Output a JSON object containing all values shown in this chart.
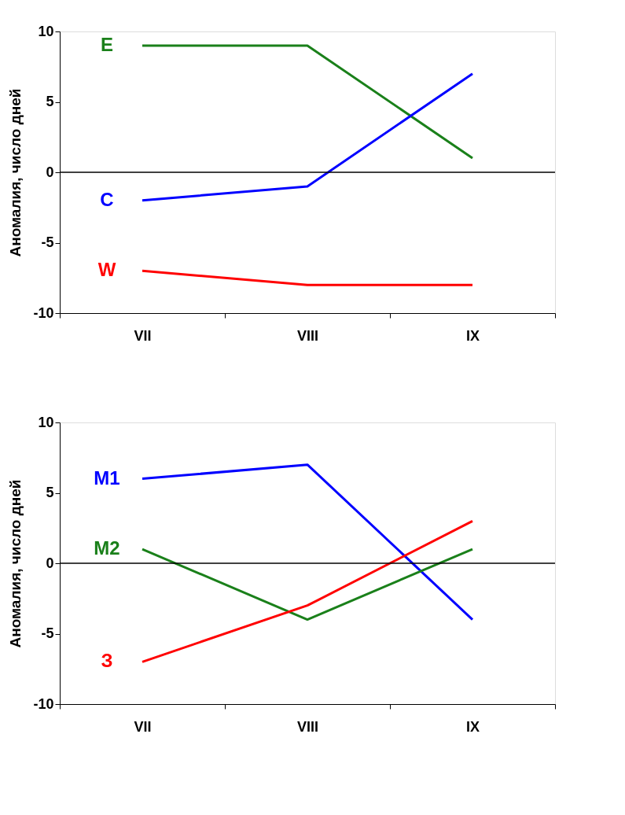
{
  "chart_data": [
    {
      "type": "line",
      "ylabel": "Аномалия, число дней",
      "categories": [
        "VII",
        "VIII",
        "IX"
      ],
      "ylim": [
        -10,
        10
      ],
      "yticks": [
        -10,
        -5,
        0,
        5,
        10
      ],
      "grid": false,
      "marker": "none",
      "line_style": "solid",
      "series": [
        {
          "name": "E",
          "color": "#1a801a",
          "values": [
            9,
            9,
            1
          ]
        },
        {
          "name": "C",
          "color": "#0000ff",
          "values": [
            -2,
            -1,
            7
          ]
        },
        {
          "name": "W",
          "color": "#ff0000",
          "values": [
            -7,
            -8,
            -8
          ]
        }
      ],
      "ref_lines": [
        {
          "axis": "y",
          "value": 0,
          "color": "#000000"
        }
      ]
    },
    {
      "type": "line",
      "ylabel": "Аномалия, число дней",
      "categories": [
        "VII",
        "VIII",
        "IX"
      ],
      "ylim": [
        -10,
        10
      ],
      "yticks": [
        -10,
        -5,
        0,
        5,
        10
      ],
      "grid": false,
      "marker": "none",
      "line_style": "solid",
      "series": [
        {
          "name": "M1",
          "color": "#0000ff",
          "values": [
            6,
            7,
            -4
          ]
        },
        {
          "name": "M2",
          "color": "#1a801a",
          "values": [
            1,
            -4,
            1
          ]
        },
        {
          "name": "З",
          "color": "#ff0000",
          "values": [
            -7,
            -3,
            3
          ]
        }
      ],
      "ref_lines": [
        {
          "axis": "y",
          "value": 0,
          "color": "#000000"
        }
      ]
    }
  ]
}
